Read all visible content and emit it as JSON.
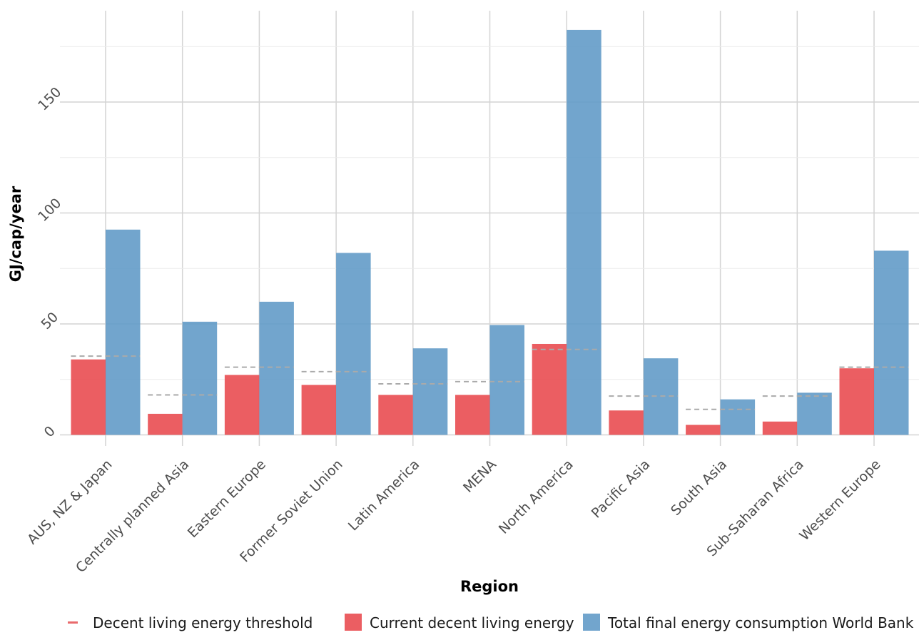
{
  "chart_data": {
    "type": "bar",
    "title": "",
    "xlabel": "Region",
    "ylabel": "GJ/cap/year",
    "ylim": [
      -5,
      188
    ],
    "y_ticks": [
      0,
      50,
      100,
      150
    ],
    "y_tick_labels": [
      "0",
      "50",
      "100",
      "150"
    ],
    "grid": true,
    "legend_position": "bottom",
    "categories": [
      "AUS, NZ & Japan",
      "Centrally planned Asia",
      "Eastern Europe",
      "Former Soviet Union",
      "Latin America",
      "MENA",
      "North America",
      "Pacific Asia",
      "South Asia",
      "Sub-Saharan Africa",
      "Western Europe"
    ],
    "series": [
      {
        "name": "Current decent living energy",
        "color": "#e8484c",
        "values": [
          34,
          9.5,
          27,
          22.5,
          18,
          18,
          41,
          11,
          4.5,
          6,
          30
        ]
      },
      {
        "name": "Total final energy consumption World Bank",
        "color": "#5e98c6",
        "values": [
          92.5,
          51,
          60,
          82,
          39,
          49.5,
          182.5,
          34.5,
          16,
          19,
          83
        ]
      }
    ],
    "threshold": {
      "name": "Decent living energy threshold",
      "color": "#aaaaaa",
      "legend_color": "#e96a6c",
      "values": [
        35.5,
        18,
        30.5,
        28.5,
        23,
        24,
        38.5,
        17.5,
        11.5,
        17.5,
        30.5
      ]
    }
  }
}
